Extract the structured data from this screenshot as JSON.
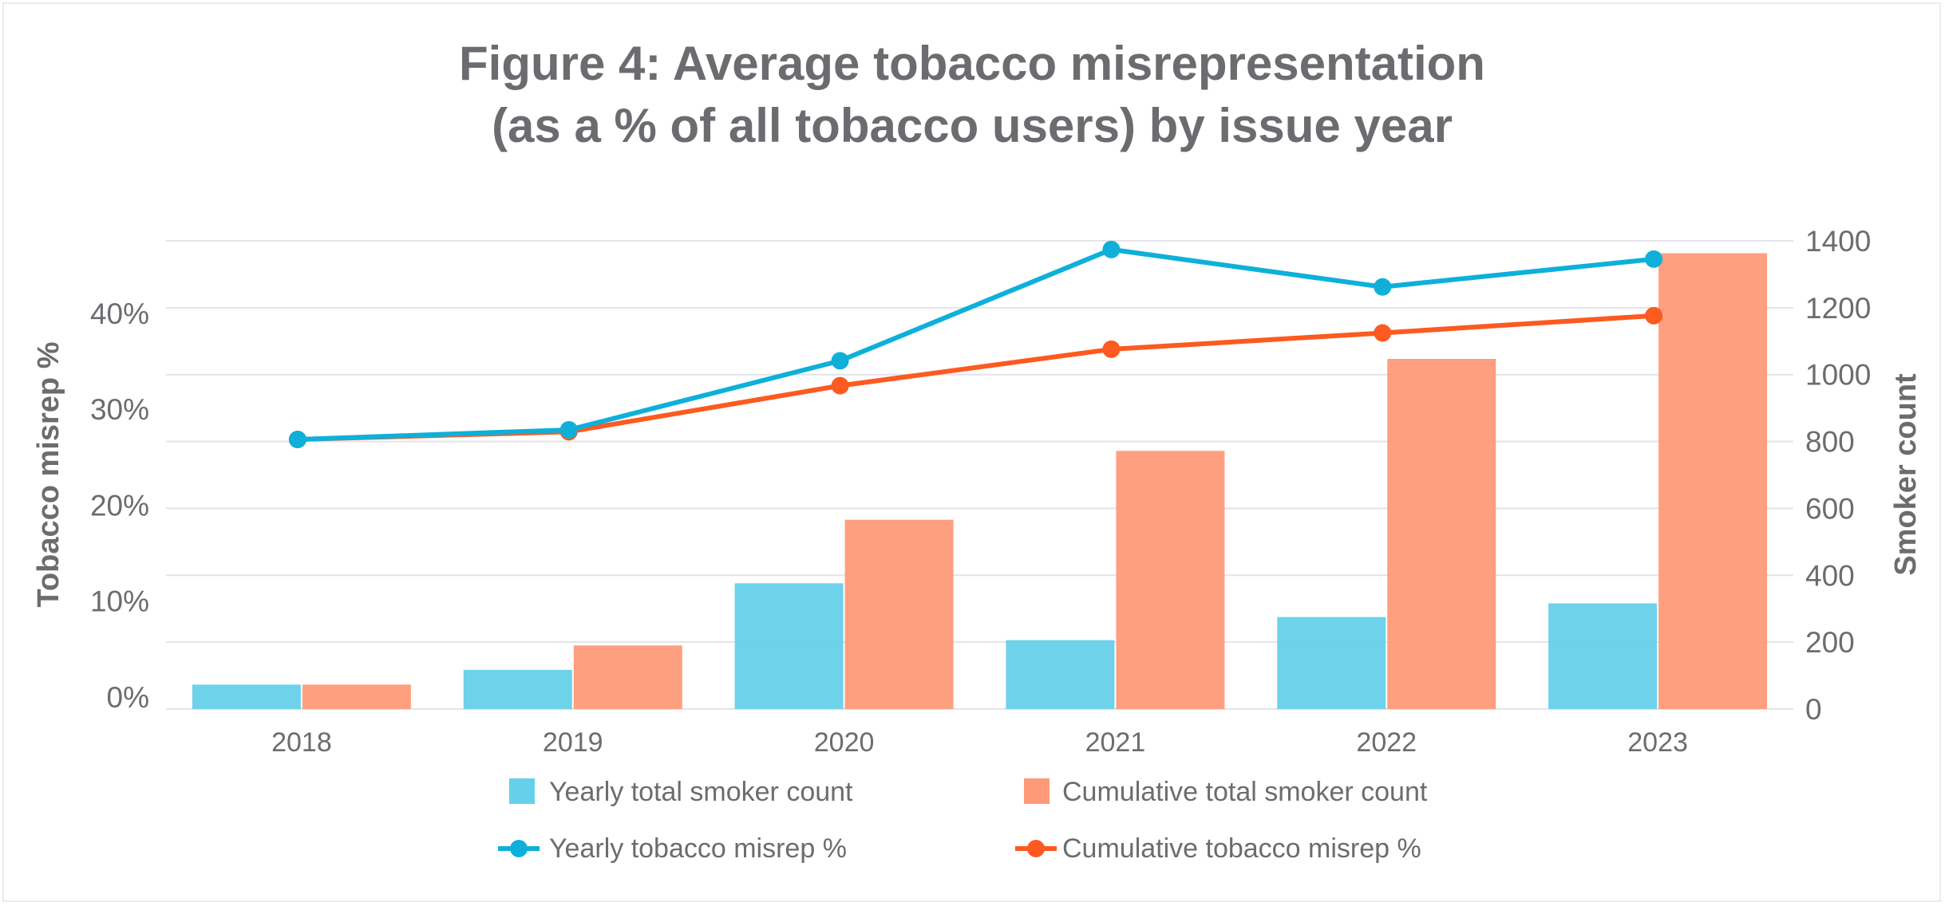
{
  "chart_data": {
    "type": "bar",
    "combo": "bar+line",
    "title_lines": [
      "Figure 4: Average tobacco misrepresentation",
      "(as a % of all tobacco users) by issue year"
    ],
    "categories": [
      "2018",
      "2019",
      "2020",
      "2021",
      "2022",
      "2023"
    ],
    "xlabel": "",
    "y_left": {
      "label": "Tobacco misrep %",
      "ticks": [
        "0%",
        "10%",
        "20%",
        "30%",
        "40%"
      ],
      "tick_values": [
        0,
        10,
        20,
        30,
        40
      ],
      "range": [
        0,
        48.8
      ]
    },
    "y_right": {
      "label": "Smoker count",
      "ticks": [
        "0",
        "200",
        "400",
        "600",
        "800",
        "1000",
        "1200",
        "1400"
      ],
      "tick_values": [
        0,
        200,
        400,
        600,
        800,
        1000,
        1200,
        1400
      ],
      "range": [
        0,
        1400
      ]
    },
    "grid": true,
    "legend_placement": "bottom-center",
    "series": [
      {
        "name": "Yearly total smoker count",
        "type": "bar",
        "axis": "right",
        "color": "#66d0ea",
        "values": [
          73,
          117,
          376,
          206,
          275,
          316
        ]
      },
      {
        "name": "Cumulative total smoker count",
        "type": "bar",
        "axis": "right",
        "color": "#fe9a78",
        "values": [
          73,
          190,
          566,
          772,
          1047,
          1363
        ]
      },
      {
        "name": "Yearly tobacco misrep %",
        "type": "line",
        "axis": "left",
        "color": "#0eb0d9",
        "values": [
          28.1,
          29.1,
          36.3,
          47.9,
          44.0,
          46.9
        ]
      },
      {
        "name": "Cumulative tobacco misrep %",
        "type": "line",
        "axis": "left",
        "color": "#fc5a20",
        "values": [
          28.1,
          28.9,
          33.7,
          37.5,
          39.2,
          41.0
        ]
      }
    ]
  }
}
